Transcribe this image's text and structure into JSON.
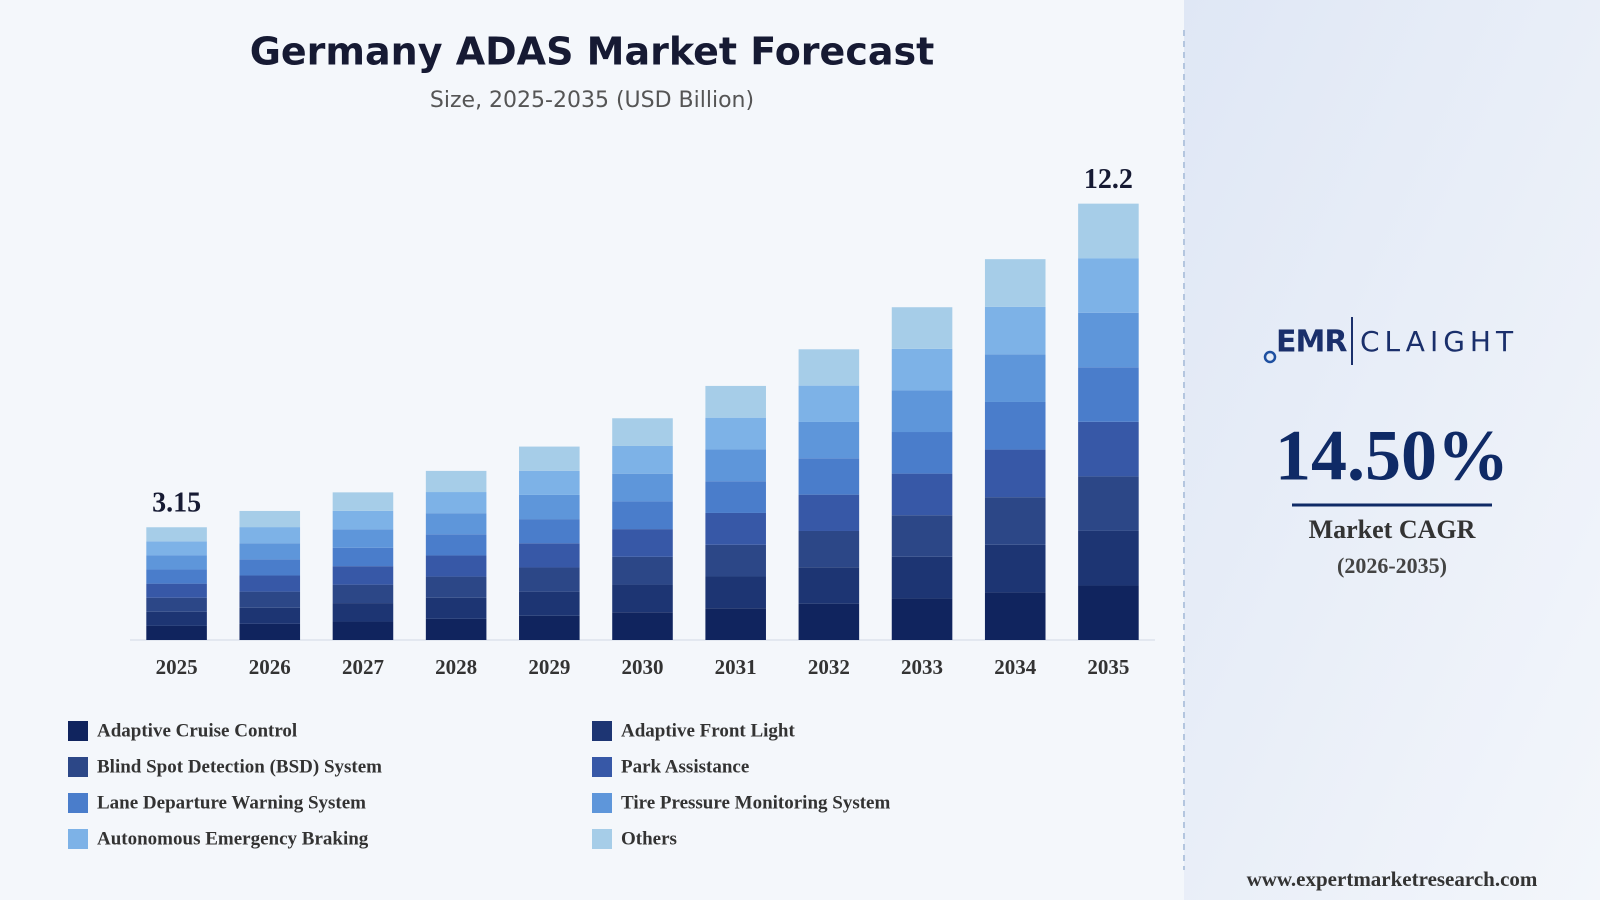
{
  "chart_data": {
    "type": "stacked_bar",
    "title": "Germany ADAS Market Forecast",
    "subtitle": "Size, 2025-2035 (USD Billion)",
    "categories": [
      "2025",
      "2026",
      "2027",
      "2028",
      "2029",
      "2030",
      "2031",
      "2032",
      "2033",
      "2034",
      "2035"
    ],
    "series": [
      {
        "name": "Adaptive Cruise Control",
        "color": "#10245e",
        "values": [
          0.394,
          0.451,
          0.516,
          0.591,
          0.676,
          0.775,
          0.888,
          1.016,
          1.163,
          1.331,
          1.525
        ]
      },
      {
        "name": "Adaptive Front Light",
        "color": "#1d3573",
        "values": [
          0.394,
          0.451,
          0.516,
          0.591,
          0.676,
          0.775,
          0.888,
          1.016,
          1.163,
          1.331,
          1.525
        ]
      },
      {
        "name": "Blind Spot Detection (BSD) System",
        "color": "#2c4787",
        "values": [
          0.394,
          0.451,
          0.516,
          0.591,
          0.676,
          0.775,
          0.888,
          1.016,
          1.163,
          1.331,
          1.525
        ]
      },
      {
        "name": "Park Assistance",
        "color": "#3758a7",
        "values": [
          0.394,
          0.451,
          0.516,
          0.591,
          0.676,
          0.775,
          0.888,
          1.016,
          1.163,
          1.331,
          1.525
        ]
      },
      {
        "name": "Lane Departure Warning System",
        "color": "#4a7dcb",
        "values": [
          0.394,
          0.451,
          0.516,
          0.591,
          0.676,
          0.775,
          0.888,
          1.016,
          1.163,
          1.331,
          1.525
        ]
      },
      {
        "name": "Tire Pressure Monitoring System",
        "color": "#5e96da",
        "values": [
          0.394,
          0.451,
          0.516,
          0.591,
          0.676,
          0.775,
          0.888,
          1.016,
          1.163,
          1.331,
          1.525
        ]
      },
      {
        "name": "Autonomous Emergency Braking",
        "color": "#7db2e7",
        "values": [
          0.394,
          0.451,
          0.516,
          0.591,
          0.676,
          0.775,
          0.888,
          1.016,
          1.163,
          1.331,
          1.525
        ]
      },
      {
        "name": "Others",
        "color": "#a6cde8",
        "values": [
          0.394,
          0.451,
          0.516,
          0.591,
          0.676,
          0.775,
          0.888,
          1.016,
          1.163,
          1.331,
          1.525
        ]
      }
    ],
    "total_labels": [
      "3.15",
      null,
      null,
      null,
      null,
      null,
      null,
      null,
      null,
      null,
      "12.2"
    ],
    "ylim": [
      0,
      13.7
    ]
  },
  "side_panel": {
    "logo_left": "EMR",
    "logo_right": "CLAIGHT",
    "cagr": "14.50%",
    "cagr_label": "Market CAGR",
    "cagr_period": "(2026-2035)",
    "website": "www.expertmarketresearch.com"
  }
}
